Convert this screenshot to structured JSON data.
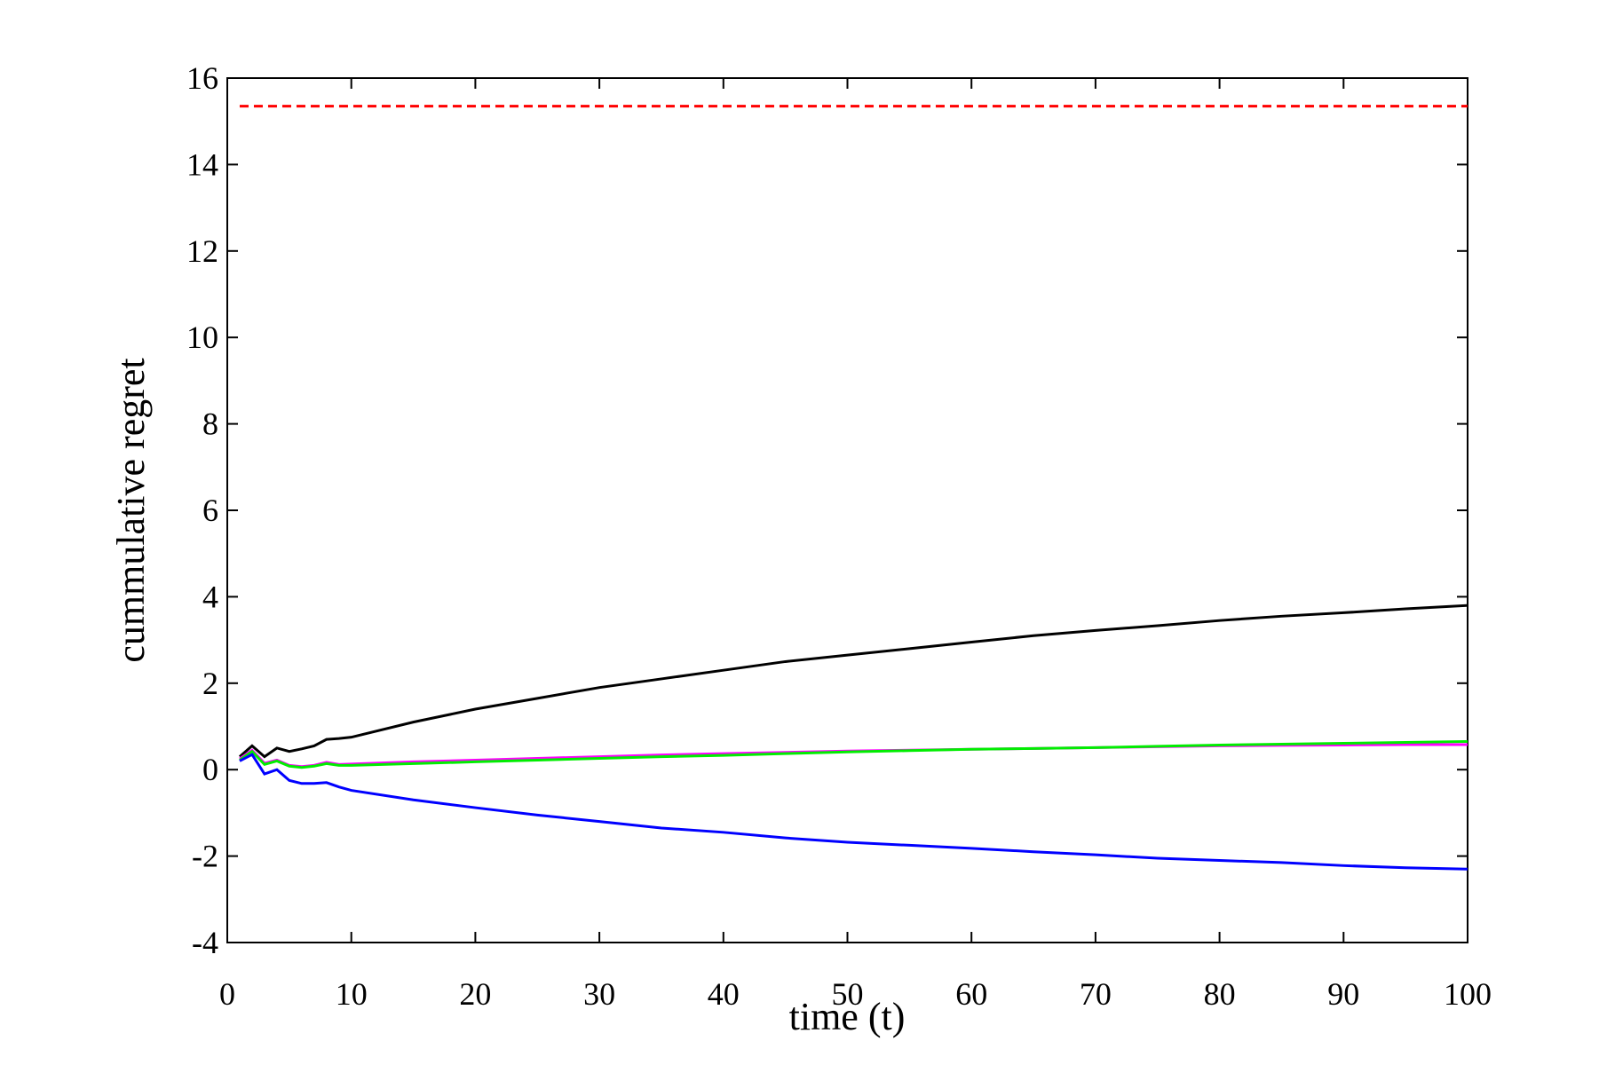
{
  "chart_data": {
    "type": "line",
    "xlabel": "time (t)",
    "ylabel": "cummulative regret",
    "xlim": [
      0,
      100
    ],
    "ylim": [
      -4,
      16
    ],
    "xticks": [
      0,
      10,
      20,
      30,
      40,
      50,
      60,
      70,
      80,
      90,
      100
    ],
    "yticks": [
      -4,
      -2,
      0,
      2,
      4,
      6,
      8,
      10,
      12,
      14,
      16
    ],
    "series": [
      {
        "color": "#ff0000",
        "dashed": true,
        "x": [
          1,
          100
        ],
        "values": [
          15.35,
          15.35
        ]
      },
      {
        "color": "#000000",
        "x": [
          1,
          2,
          3,
          4,
          5,
          6,
          7,
          8,
          9,
          10,
          15,
          20,
          25,
          30,
          35,
          40,
          45,
          50,
          55,
          60,
          65,
          70,
          75,
          80,
          85,
          90,
          95,
          100
        ],
        "values": [
          0.3,
          0.55,
          0.3,
          0.5,
          0.42,
          0.48,
          0.55,
          0.7,
          0.72,
          0.75,
          1.1,
          1.4,
          1.65,
          1.9,
          2.1,
          2.3,
          2.5,
          2.65,
          2.8,
          2.95,
          3.1,
          3.22,
          3.33,
          3.45,
          3.55,
          3.63,
          3.72,
          3.8
        ]
      },
      {
        "color": "#ff00ff",
        "x": [
          1,
          2,
          3,
          4,
          5,
          6,
          7,
          8,
          9,
          10,
          15,
          20,
          25,
          30,
          35,
          40,
          45,
          50,
          55,
          60,
          65,
          70,
          75,
          80,
          85,
          90,
          95,
          100
        ],
        "values": [
          0.25,
          0.45,
          0.15,
          0.22,
          0.1,
          0.07,
          0.1,
          0.17,
          0.12,
          0.13,
          0.18,
          0.22,
          0.26,
          0.3,
          0.34,
          0.37,
          0.4,
          0.43,
          0.45,
          0.47,
          0.49,
          0.51,
          0.53,
          0.55,
          0.56,
          0.57,
          0.58,
          0.58
        ]
      },
      {
        "color": "#00ee00",
        "x": [
          1,
          2,
          3,
          4,
          5,
          6,
          7,
          8,
          9,
          10,
          15,
          20,
          25,
          30,
          35,
          40,
          45,
          50,
          55,
          60,
          65,
          70,
          75,
          80,
          85,
          90,
          95,
          100
        ],
        "values": [
          0.22,
          0.42,
          0.12,
          0.2,
          0.08,
          0.05,
          0.08,
          0.14,
          0.1,
          0.1,
          0.14,
          0.18,
          0.22,
          0.26,
          0.3,
          0.33,
          0.37,
          0.41,
          0.44,
          0.47,
          0.49,
          0.51,
          0.54,
          0.57,
          0.59,
          0.61,
          0.63,
          0.65
        ]
      },
      {
        "color": "#0000ff",
        "x": [
          1,
          2,
          3,
          4,
          5,
          6,
          7,
          8,
          9,
          10,
          15,
          20,
          25,
          30,
          35,
          40,
          45,
          50,
          55,
          60,
          65,
          70,
          75,
          80,
          85,
          90,
          95,
          100
        ],
        "values": [
          0.2,
          0.35,
          -0.1,
          0,
          -0.25,
          -0.32,
          -0.32,
          -0.3,
          -0.4,
          -0.48,
          -0.7,
          -0.88,
          -1.05,
          -1.2,
          -1.35,
          -1.45,
          -1.58,
          -1.68,
          -1.75,
          -1.82,
          -1.9,
          -1.97,
          -2.05,
          -2.1,
          -2.15,
          -2.22,
          -2.27,
          -2.3
        ]
      }
    ]
  }
}
